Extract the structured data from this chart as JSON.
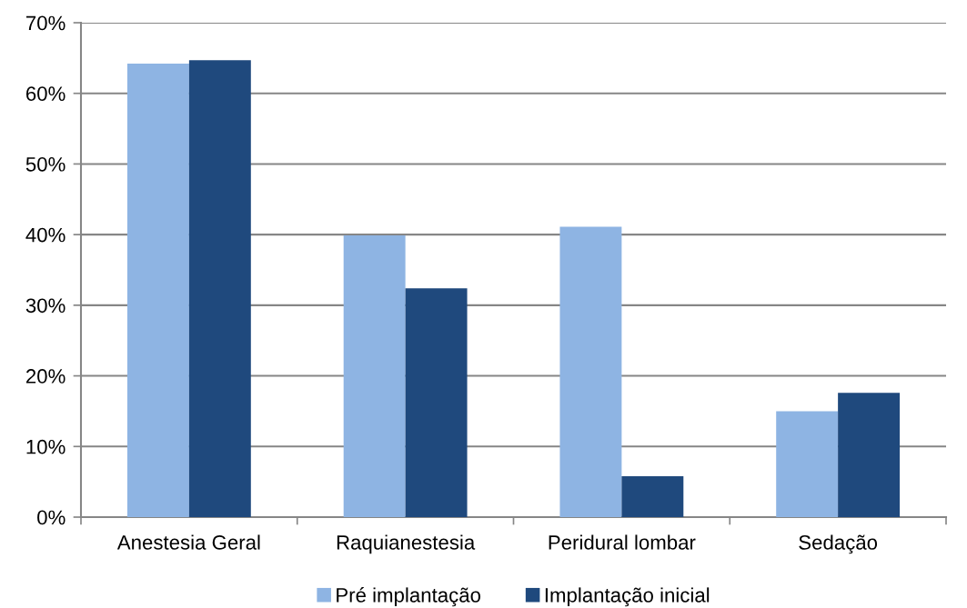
{
  "chart_data": {
    "type": "bar",
    "categories": [
      "Anestesia Geral",
      "Raquianestesia",
      "Peridural lombar",
      "Sedação"
    ],
    "series": [
      {
        "name": "Pré implantação",
        "color": "#8eb4e3",
        "values": [
          64.2,
          39.9,
          41.1,
          15.0
        ]
      },
      {
        "name": "Implantação inicial",
        "color": "#1f497d",
        "values": [
          64.7,
          32.4,
          5.8,
          17.6
        ]
      }
    ],
    "ylim": [
      0,
      70
    ],
    "yticks": [
      {
        "value": 0,
        "label": "0%"
      },
      {
        "value": 10,
        "label": "10%"
      },
      {
        "value": 20,
        "label": "20%"
      },
      {
        "value": 30,
        "label": "30%"
      },
      {
        "value": 40,
        "label": "40%"
      },
      {
        "value": 50,
        "label": "50%"
      },
      {
        "value": 60,
        "label": "60%"
      },
      {
        "value": 70,
        "label": "70%"
      }
    ],
    "grid": "y",
    "legend": "bottom"
  }
}
